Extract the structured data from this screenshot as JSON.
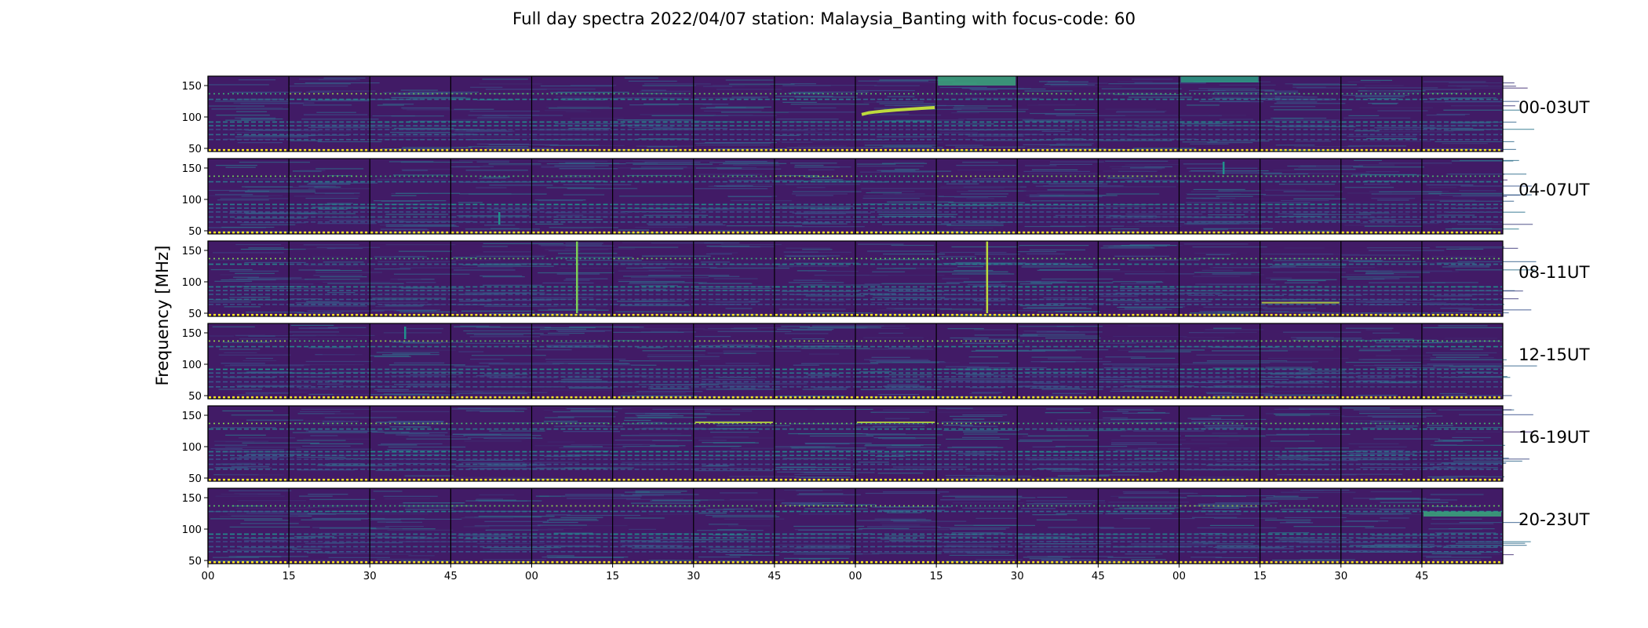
{
  "chart_data": {
    "type": "heatmap",
    "title": "Full day spectra 2022/04/07 station: Malaysia_Banting with focus-code: 60",
    "ylabel": "Frequency [MHz]",
    "xlabel": "",
    "ylim": [
      45,
      165
    ],
    "y_ticks": [
      50,
      100,
      150
    ],
    "x_ticks": [
      "00",
      "15",
      "30",
      "45",
      "00",
      "15",
      "30",
      "45",
      "00",
      "15",
      "30",
      "45",
      "00",
      "15",
      "30",
      "45"
    ],
    "row_labels": [
      "00-03UT",
      "04-07UT",
      "08-11UT",
      "12-15UT",
      "16-19UT",
      "20-23UT"
    ],
    "panels_per_row": 16,
    "minutes_per_panel": 15,
    "colormap": [
      "#440154",
      "#3b528b",
      "#21918c",
      "#5ec962",
      "#fde725"
    ],
    "background_level": 0.08,
    "persistent_lines_mhz": [
      {
        "freq": 137,
        "level": 0.85
      },
      {
        "freq": 128,
        "level": 0.45
      },
      {
        "freq": 92,
        "level": 0.5
      },
      {
        "freq": 86,
        "level": 0.4
      },
      {
        "freq": 80,
        "level": 0.3
      },
      {
        "freq": 72,
        "level": 0.35
      },
      {
        "freq": 64,
        "level": 0.3
      }
    ],
    "calibration_marker_mhz": 47,
    "bursts": [
      {
        "row": 0,
        "panel": 8,
        "f_start": 104,
        "f_end": 115,
        "level": 0.9,
        "kind": "drift"
      },
      {
        "row": 0,
        "panel": 9,
        "f_start": 150,
        "f_end": 165,
        "level": 0.6,
        "kind": "band"
      },
      {
        "row": 0,
        "panel": 12,
        "f_start": 155,
        "f_end": 165,
        "level": 0.55,
        "kind": "band"
      },
      {
        "row": 1,
        "panel": 3,
        "f_start": 60,
        "f_end": 80,
        "level": 0.5,
        "kind": "vertical"
      },
      {
        "row": 1,
        "panel": 12,
        "f_start": 140,
        "f_end": 160,
        "level": 0.5,
        "kind": "vertical"
      },
      {
        "row": 2,
        "panel": 4,
        "f_start": 50,
        "f_end": 165,
        "level": 0.8,
        "kind": "vertical"
      },
      {
        "row": 2,
        "panel": 9,
        "f_start": 50,
        "f_end": 165,
        "level": 0.9,
        "kind": "vertical"
      },
      {
        "row": 2,
        "panel": 13,
        "f_start": 66,
        "f_end": 68,
        "level": 0.9,
        "kind": "band"
      },
      {
        "row": 3,
        "panel": 2,
        "f_start": 140,
        "f_end": 160,
        "level": 0.5,
        "kind": "vertical"
      },
      {
        "row": 4,
        "panel": 6,
        "f_start": 138,
        "f_end": 140,
        "level": 0.9,
        "kind": "band"
      },
      {
        "row": 4,
        "panel": 8,
        "f_start": 138,
        "f_end": 140,
        "level": 0.9,
        "kind": "band"
      },
      {
        "row": 5,
        "panel": 15,
        "f_start": 120,
        "f_end": 128,
        "level": 0.6,
        "kind": "band"
      }
    ]
  }
}
